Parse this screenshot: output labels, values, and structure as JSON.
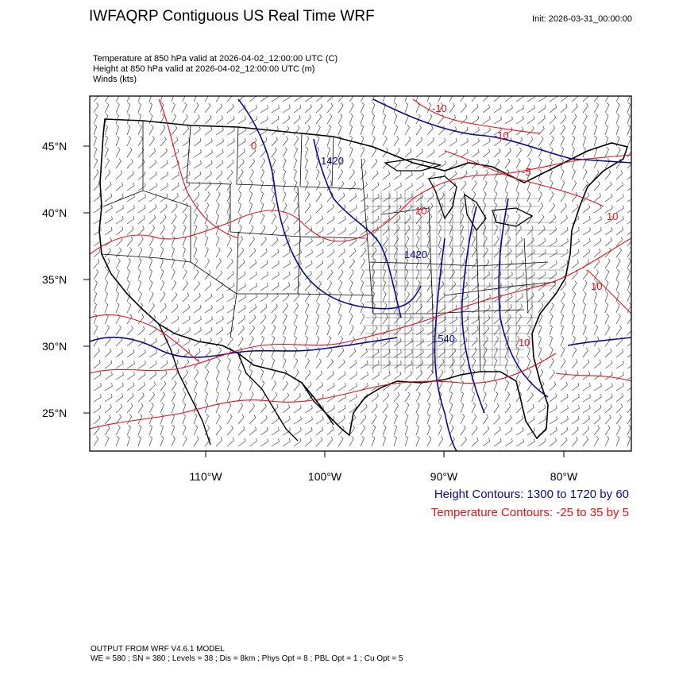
{
  "header": {
    "title": "IWFAQRP Contiguous US Real Time WRF",
    "init": "Init: 2026-03-31_00:00:00"
  },
  "subtitles": [
    "Temperature at 850 hPa valid at 2026-04-02_12:00:00 UTC   (C)",
    "Height at 850 hPa valid at 2026-04-02_12:00:00 UTC   (m)",
    "Winds   (kts)"
  ],
  "map": {
    "lat_labels": [
      "45°N",
      "40°N",
      "35°N",
      "30°N",
      "25°N"
    ],
    "lon_labels": [
      "110°W",
      "100°W",
      "90°W",
      "80°W"
    ],
    "contour_labels": {
      "height": [
        "1420",
        "1420",
        "1540"
      ],
      "temperature": [
        "-10",
        "-10",
        "-5",
        "10",
        "10",
        "0",
        "10",
        "10"
      ]
    },
    "colors": {
      "height": "#0a0a8c",
      "temperature": "#e8101a",
      "boundaries": "#000000"
    }
  },
  "legend": {
    "height": "Height Contours: 1300 to 1720 by 60",
    "temperature": "Temperature Contours: -25 to 35 by 5"
  },
  "footer": {
    "line1": "OUTPUT FROM WRF V4.6.1 MODEL",
    "line2": "WE = 580 ; SN = 380 ; Levels = 38 ; Dis = 8km ; Phys Opt = 8 ; PBL Opt = 1 ; Cu Opt = 5"
  }
}
